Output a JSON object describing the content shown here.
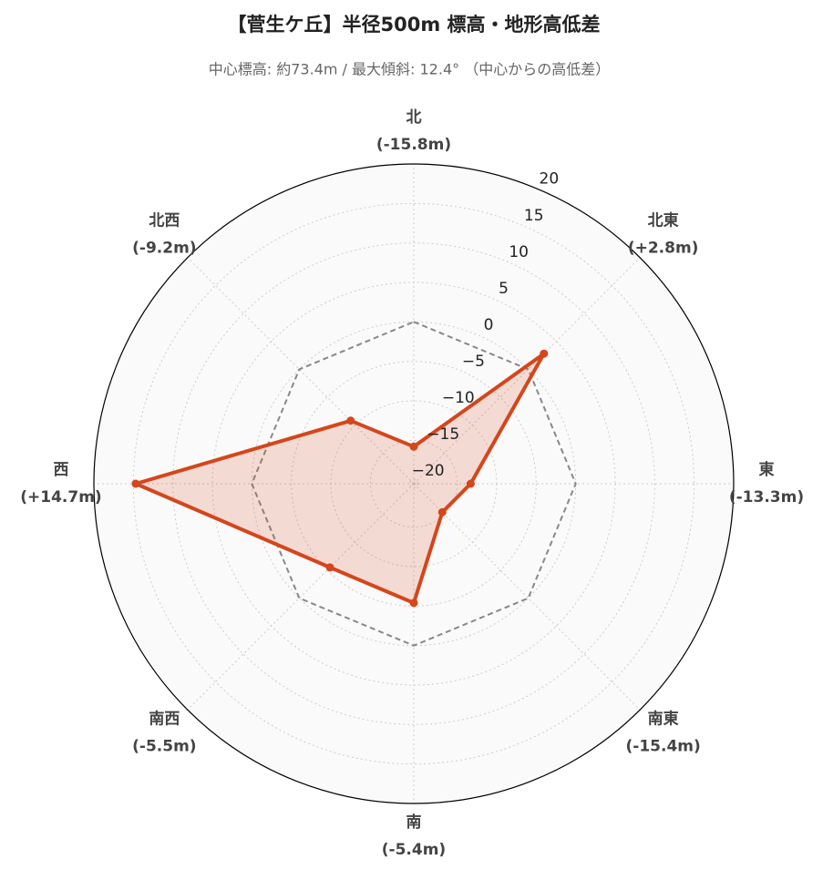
{
  "chart_data": {
    "type": "radar",
    "title": "【菅生ケ丘】半径500m 標高・地形高低差",
    "subtitle": "中心標高: 約73.4m / 最大傾斜: 12.4° （中心からの高低差）",
    "categories": [
      "北",
      "北東",
      "東",
      "南東",
      "南",
      "南西",
      "西",
      "北西"
    ],
    "series": [
      {
        "color": "#888888",
        "dash": true,
        "fill": false,
        "markers": false,
        "values": [
          0,
          0,
          0,
          0,
          0,
          0,
          0,
          0
        ]
      },
      {
        "color": "#d4461c",
        "dash": false,
        "fill": true,
        "markers": true,
        "values": [
          -15.8,
          2.8,
          -13.3,
          -15.4,
          -5.4,
          -5.5,
          14.7,
          -9.2
        ],
        "value_labels": [
          "(-15.8m)",
          "(+2.8m)",
          "(-13.3m)",
          "(-15.4m)",
          "(-5.4m)",
          "(-5.5m)",
          "(+14.7m)",
          "(-9.2m)"
        ]
      }
    ],
    "ylim": [
      -20.5,
      20
    ],
    "yticks": [
      {
        "value": -20,
        "label": "−20"
      },
      {
        "value": -15,
        "label": "−15"
      },
      {
        "value": -10,
        "label": "−10"
      },
      {
        "value": -5,
        "label": "−5"
      },
      0,
      5,
      10,
      15,
      20
    ],
    "grid": true
  }
}
